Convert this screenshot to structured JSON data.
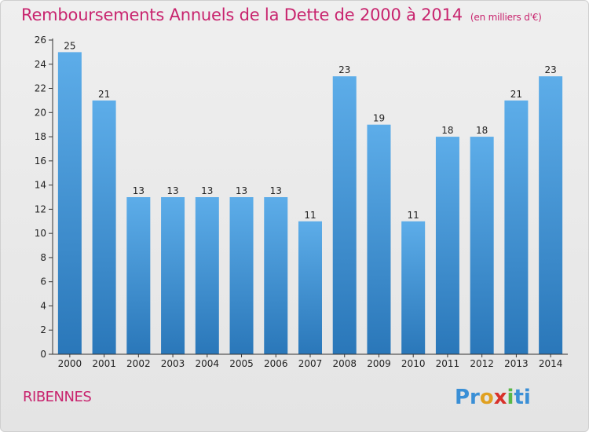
{
  "header": {
    "title": "Remboursements Annuels de la Dette de 2000 à 2014",
    "subtitle": "(en milliers d'€)"
  },
  "footer": {
    "city": "RIBENNES",
    "logo": {
      "parts": [
        {
          "text": "Pr",
          "color": "#3a8fd6"
        },
        {
          "text": "o",
          "color": "#e0a020"
        },
        {
          "text": "x",
          "color": "#d8312a"
        },
        {
          "text": "i",
          "color": "#59b847"
        },
        {
          "text": "ti",
          "color": "#3a8fd6"
        }
      ]
    }
  },
  "colors": {
    "bar_top": "#5dade9",
    "bar_bottom": "#2a77b9",
    "title": "#c8246e",
    "axis": "#333333"
  },
  "chart_data": {
    "type": "bar",
    "categories": [
      "2000",
      "2001",
      "2002",
      "2003",
      "2004",
      "2005",
      "2006",
      "2007",
      "2008",
      "2009",
      "2010",
      "2011",
      "2012",
      "2013",
      "2014"
    ],
    "values": [
      25,
      21,
      13,
      13,
      13,
      13,
      13,
      11,
      23,
      19,
      11,
      18,
      18,
      21,
      23
    ],
    "data_labels": [
      "25",
      "21",
      "13",
      "13",
      "13",
      "13",
      "13",
      "11",
      "23",
      "19",
      "11",
      "18",
      "18",
      "21",
      "23"
    ],
    "ylim": [
      0,
      26
    ],
    "yticks": [
      0,
      2,
      4,
      6,
      8,
      10,
      12,
      14,
      16,
      18,
      20,
      22,
      24,
      26
    ],
    "grid": false,
    "legend": "none"
  }
}
